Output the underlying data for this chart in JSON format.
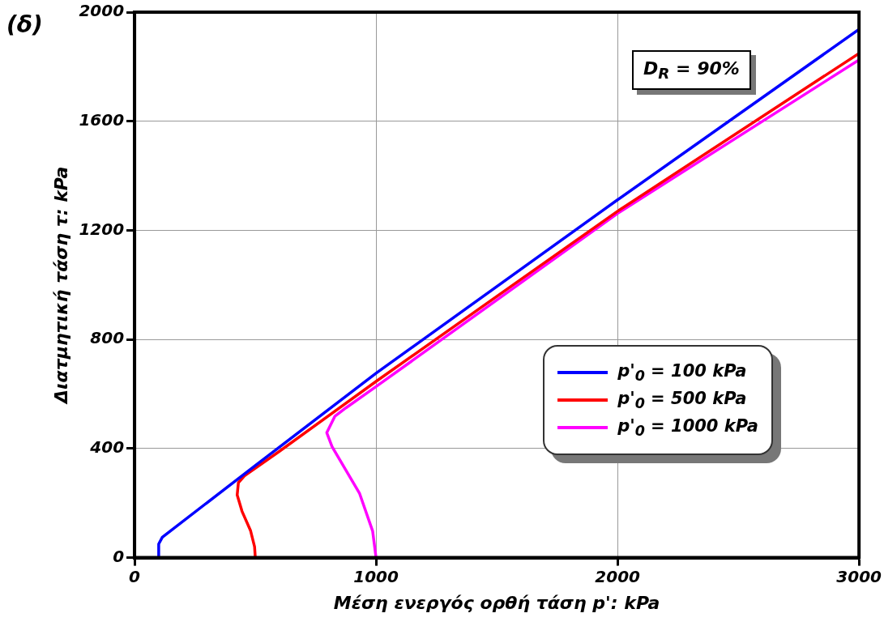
{
  "chart_data": {
    "type": "line",
    "title": "(δ)",
    "xlabel": "Μέση ενεργός ορθή τάση p': kPa",
    "ylabel": "Διατμητική τάση τ: kPa",
    "annotations": [
      "D$_{R}$ = 90%"
    ],
    "xlim": [
      0,
      3000
    ],
    "xticks": [
      0,
      1000,
      2000,
      3000
    ],
    "ylim": [
      0,
      2000
    ],
    "yticks": [
      0,
      400,
      800,
      1200,
      1600,
      2000
    ],
    "grid": true,
    "legend": "right",
    "marker": "none",
    "line_style": "solid",
    "series": [
      {
        "name": "p'$_{0}$ = 100 kPa",
        "color": "#0000ff",
        "x": [
          100,
          100,
          115,
          500,
          1000,
          2000,
          3000
        ],
        "values": [
          0,
          50,
          75,
          338,
          676,
          1312,
          1937
        ]
      },
      {
        "name": "p'$_{0}$ = 500 kPa",
        "color": "#ff0000",
        "x": [
          500,
          497,
          480,
          445,
          425,
          430,
          455,
          600,
          1000,
          2000,
          3000
        ],
        "values": [
          0,
          40,
          100,
          170,
          230,
          275,
          300,
          390,
          646,
          1270,
          1849
        ]
      },
      {
        "name": "p'$_{0}$ = 1000 kPa",
        "color": "#ff00ff",
        "x": [
          1000,
          986,
          932,
          818,
          796,
          830,
          875,
          1000,
          2000,
          3000
        ],
        "values": [
          0,
          97,
          235,
          407,
          458,
          519,
          549,
          627,
          1262,
          1825
        ]
      }
    ]
  }
}
